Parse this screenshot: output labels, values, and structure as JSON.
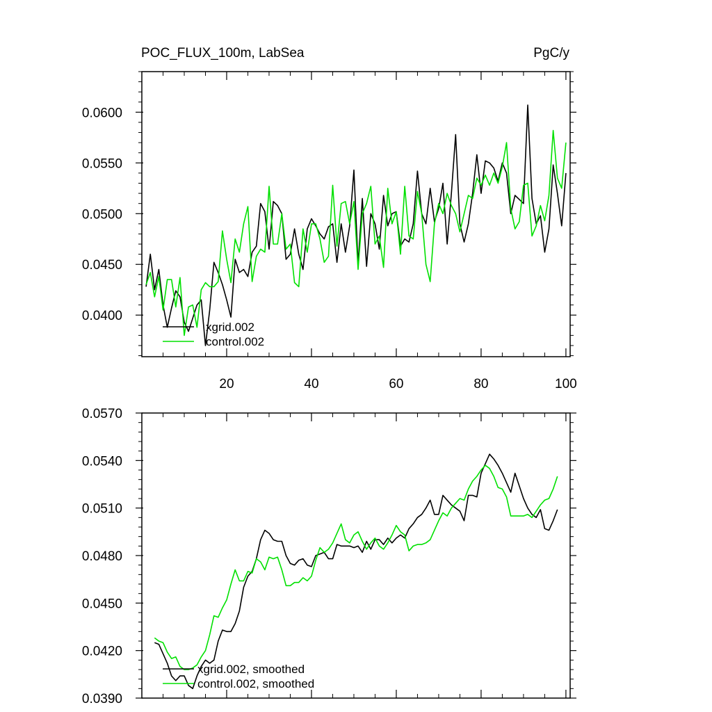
{
  "chart_data": [
    {
      "type": "line",
      "title": "POC_FLUX_100m, LabSea",
      "units": "PgC/y",
      "xlim": [
        0,
        101
      ],
      "ylim": [
        0.0359,
        0.064
      ],
      "x_ticks": [
        20,
        40,
        60,
        80,
        100
      ],
      "x_tick_labels": [
        "20",
        "40",
        "60",
        "80",
        "100"
      ],
      "y_ticks": [
        0.04,
        0.045,
        0.05,
        0.055,
        0.06
      ],
      "y_tick_labels": [
        "0.0400",
        "0.0450",
        "0.0500",
        "0.0550",
        "0.0600"
      ],
      "legend_position": "bottom-left",
      "series": [
        {
          "name": "xgrid.002",
          "color": "#000000",
          "x": [
            1,
            2,
            3,
            4,
            5,
            6,
            7,
            8,
            9,
            10,
            11,
            12,
            13,
            14,
            15,
            16,
            17,
            18,
            19,
            20,
            21,
            22,
            23,
            24,
            25,
            26,
            27,
            28,
            29,
            30,
            31,
            32,
            33,
            34,
            35,
            36,
            37,
            38,
            39,
            40,
            41,
            42,
            43,
            44,
            45,
            46,
            47,
            48,
            49,
            50,
            51,
            52,
            53,
            54,
            55,
            56,
            57,
            58,
            59,
            60,
            61,
            62,
            63,
            64,
            65,
            66,
            67,
            68,
            69,
            70,
            71,
            72,
            73,
            74,
            75,
            76,
            77,
            78,
            79,
            80,
            81,
            82,
            83,
            84,
            85,
            86,
            87,
            88,
            89,
            90,
            91,
            92,
            93,
            94,
            95,
            96,
            97,
            98,
            99,
            100
          ],
          "values": [
            0.0428,
            0.046,
            0.0425,
            0.0445,
            0.041,
            0.0388,
            0.0407,
            0.0424,
            0.0418,
            0.0393,
            0.0384,
            0.0397,
            0.041,
            0.0415,
            0.037,
            0.0405,
            0.0452,
            0.0442,
            0.043,
            0.0415,
            0.0398,
            0.0455,
            0.0442,
            0.0445,
            0.0438,
            0.0462,
            0.0468,
            0.051,
            0.0502,
            0.0465,
            0.0512,
            0.0508,
            0.05,
            0.0455,
            0.046,
            0.0485,
            0.046,
            0.0445,
            0.0485,
            0.0495,
            0.0488,
            0.048,
            0.0475,
            0.0487,
            0.049,
            0.0452,
            0.049,
            0.0462,
            0.0488,
            0.0543,
            0.045,
            0.0515,
            0.0448,
            0.05,
            0.049,
            0.0465,
            0.0518,
            0.0488,
            0.05,
            0.0502,
            0.0468,
            0.0475,
            0.0472,
            0.049,
            0.0542,
            0.05,
            0.049,
            0.0525,
            0.0492,
            0.0505,
            0.053,
            0.047,
            0.052,
            0.0578,
            0.049,
            0.0472,
            0.049,
            0.052,
            0.0558,
            0.052,
            0.0552,
            0.055,
            0.0545,
            0.0532,
            0.055,
            0.054,
            0.05,
            0.0518,
            0.0514,
            0.051,
            0.0607,
            0.0515,
            0.049,
            0.0498,
            0.0462,
            0.0485,
            0.0548,
            0.052,
            0.0488,
            0.054
          ]
        },
        {
          "name": "control.002",
          "color": "#00e000",
          "x": [
            1,
            2,
            3,
            4,
            5,
            6,
            7,
            8,
            9,
            10,
            11,
            12,
            13,
            14,
            15,
            16,
            17,
            18,
            19,
            20,
            21,
            22,
            23,
            24,
            25,
            26,
            27,
            28,
            29,
            30,
            31,
            32,
            33,
            34,
            35,
            36,
            37,
            38,
            39,
            40,
            41,
            42,
            43,
            44,
            45,
            46,
            47,
            48,
            49,
            50,
            51,
            52,
            53,
            54,
            55,
            56,
            57,
            58,
            59,
            60,
            61,
            62,
            63,
            64,
            65,
            66,
            67,
            68,
            69,
            70,
            71,
            72,
            73,
            74,
            75,
            76,
            77,
            78,
            79,
            80,
            81,
            82,
            83,
            84,
            85,
            86,
            87,
            88,
            89,
            90,
            91,
            92,
            93,
            94,
            95,
            96,
            97,
            98,
            99,
            100
          ],
          "values": [
            0.043,
            0.0442,
            0.0418,
            0.0438,
            0.0405,
            0.0435,
            0.0435,
            0.0408,
            0.0437,
            0.038,
            0.0408,
            0.041,
            0.0388,
            0.0425,
            0.0432,
            0.0428,
            0.0428,
            0.0433,
            0.0483,
            0.0455,
            0.0432,
            0.0475,
            0.0462,
            0.049,
            0.0507,
            0.0433,
            0.0458,
            0.0465,
            0.0462,
            0.0527,
            0.047,
            0.047,
            0.05,
            0.0465,
            0.047,
            0.0432,
            0.0428,
            0.0485,
            0.0462,
            0.049,
            0.049,
            0.0475,
            0.0452,
            0.0458,
            0.0528,
            0.0468,
            0.051,
            0.0512,
            0.049,
            0.0512,
            0.0445,
            0.05,
            0.051,
            0.0527,
            0.047,
            0.0478,
            0.0447,
            0.0525,
            0.049,
            0.0502,
            0.046,
            0.0527,
            0.0478,
            0.0475,
            0.0522,
            0.05,
            0.045,
            0.0433,
            0.049,
            0.051,
            0.05,
            0.052,
            0.0508,
            0.05,
            0.0482,
            0.05,
            0.0518,
            0.0515,
            0.0535,
            0.0528,
            0.0538,
            0.0528,
            0.054,
            0.053,
            0.0546,
            0.057,
            0.0505,
            0.0485,
            0.0492,
            0.0528,
            0.053,
            0.0478,
            0.0488,
            0.0508,
            0.0493,
            0.0518,
            0.0582,
            0.0535,
            0.0525,
            0.057
          ]
        }
      ]
    },
    {
      "type": "line",
      "title": "",
      "xlim": [
        0,
        101
      ],
      "ylim": [
        0.039,
        0.057
      ],
      "x_ticks": [
        20,
        40,
        60,
        80,
        100
      ],
      "y_ticks": [
        0.039,
        0.042,
        0.045,
        0.048,
        0.051,
        0.054,
        0.057
      ],
      "y_tick_labels": [
        "0.0390",
        "0.0420",
        "0.0450",
        "0.0480",
        "0.0510",
        "0.0540",
        "0.0570"
      ],
      "legend_position": "bottom-left",
      "series": [
        {
          "name": "xgrid.002, smoothed",
          "color": "#000000",
          "x": [
            3,
            4,
            5,
            6,
            7,
            8,
            9,
            10,
            11,
            12,
            13,
            14,
            15,
            16,
            17,
            18,
            19,
            20,
            21,
            22,
            23,
            24,
            25,
            26,
            27,
            28,
            29,
            30,
            31,
            32,
            33,
            34,
            35,
            36,
            37,
            38,
            39,
            40,
            41,
            42,
            43,
            44,
            45,
            46,
            47,
            48,
            49,
            50,
            51,
            52,
            53,
            54,
            55,
            56,
            57,
            58,
            59,
            60,
            61,
            62,
            63,
            64,
            65,
            66,
            67,
            68,
            69,
            70,
            71,
            72,
            73,
            74,
            75,
            76,
            77,
            78,
            79,
            80,
            81,
            82,
            83,
            84,
            85,
            86,
            87,
            88,
            89,
            90,
            91,
            92,
            93,
            94,
            95,
            96,
            97,
            98
          ],
          "values": [
            0.0425,
            0.0424,
            0.0418,
            0.0412,
            0.0404,
            0.0401,
            0.0404,
            0.0404,
            0.0398,
            0.0396,
            0.0404,
            0.041,
            0.0414,
            0.0412,
            0.0414,
            0.0426,
            0.0433,
            0.0432,
            0.0432,
            0.0437,
            0.0445,
            0.046,
            0.0467,
            0.047,
            0.0478,
            0.049,
            0.0496,
            0.0494,
            0.049,
            0.0489,
            0.0489,
            0.048,
            0.0475,
            0.0474,
            0.0477,
            0.0478,
            0.0474,
            0.0473,
            0.048,
            0.0481,
            0.0482,
            0.0478,
            0.0478,
            0.0487,
            0.0486,
            0.0486,
            0.0486,
            0.0485,
            0.0486,
            0.0482,
            0.0489,
            0.0484,
            0.049,
            0.049,
            0.0487,
            0.0491,
            0.0488,
            0.0491,
            0.0493,
            0.0491,
            0.0497,
            0.05,
            0.0504,
            0.0506,
            0.051,
            0.0515,
            0.0506,
            0.0506,
            0.0518,
            0.0515,
            0.0512,
            0.051,
            0.0508,
            0.0502,
            0.0518,
            0.0518,
            0.0517,
            0.0532,
            0.0538,
            0.0544,
            0.0541,
            0.0537,
            0.0532,
            0.0526,
            0.052,
            0.0532,
            0.0524,
            0.0516,
            0.051,
            0.0506,
            0.0504,
            0.0509,
            0.0497,
            0.0496,
            0.0502,
            0.0509
          ]
        },
        {
          "name": "control.002, smoothed",
          "color": "#00e000",
          "x": [
            3,
            4,
            5,
            6,
            7,
            8,
            9,
            10,
            11,
            12,
            13,
            14,
            15,
            16,
            17,
            18,
            19,
            20,
            21,
            22,
            23,
            24,
            25,
            26,
            27,
            28,
            29,
            30,
            31,
            32,
            33,
            34,
            35,
            36,
            37,
            38,
            39,
            40,
            41,
            42,
            43,
            44,
            45,
            46,
            47,
            48,
            49,
            50,
            51,
            52,
            53,
            54,
            55,
            56,
            57,
            58,
            59,
            60,
            61,
            62,
            63,
            64,
            65,
            66,
            67,
            68,
            69,
            70,
            71,
            72,
            73,
            74,
            75,
            76,
            77,
            78,
            79,
            80,
            81,
            82,
            83,
            84,
            85,
            86,
            87,
            88,
            89,
            90,
            91,
            92,
            93,
            94,
            95,
            96,
            97,
            98
          ],
          "values": [
            0.0428,
            0.0426,
            0.0425,
            0.0419,
            0.0415,
            0.0416,
            0.041,
            0.0408,
            0.0408,
            0.0409,
            0.0411,
            0.0416,
            0.042,
            0.043,
            0.0442,
            0.0441,
            0.0447,
            0.0452,
            0.0462,
            0.0471,
            0.0464,
            0.0464,
            0.047,
            0.0469,
            0.0478,
            0.0476,
            0.0471,
            0.0479,
            0.0478,
            0.0479,
            0.0471,
            0.0461,
            0.0461,
            0.0463,
            0.0463,
            0.0466,
            0.0464,
            0.0467,
            0.0477,
            0.0485,
            0.0482,
            0.0484,
            0.0488,
            0.0494,
            0.05,
            0.049,
            0.0488,
            0.0493,
            0.0495,
            0.0489,
            0.0484,
            0.0488,
            0.0491,
            0.0486,
            0.0484,
            0.0488,
            0.0493,
            0.0499,
            0.0495,
            0.0493,
            0.0483,
            0.0486,
            0.0487,
            0.0487,
            0.0488,
            0.049,
            0.0496,
            0.0502,
            0.0507,
            0.0505,
            0.051,
            0.0513,
            0.0516,
            0.0515,
            0.0522,
            0.0527,
            0.053,
            0.0534,
            0.0537,
            0.0535,
            0.053,
            0.0523,
            0.0522,
            0.0517,
            0.0505,
            0.0505,
            0.0505,
            0.0505,
            0.0506,
            0.0504,
            0.0508,
            0.0512,
            0.0515,
            0.0516,
            0.0522,
            0.053
          ]
        }
      ]
    }
  ]
}
